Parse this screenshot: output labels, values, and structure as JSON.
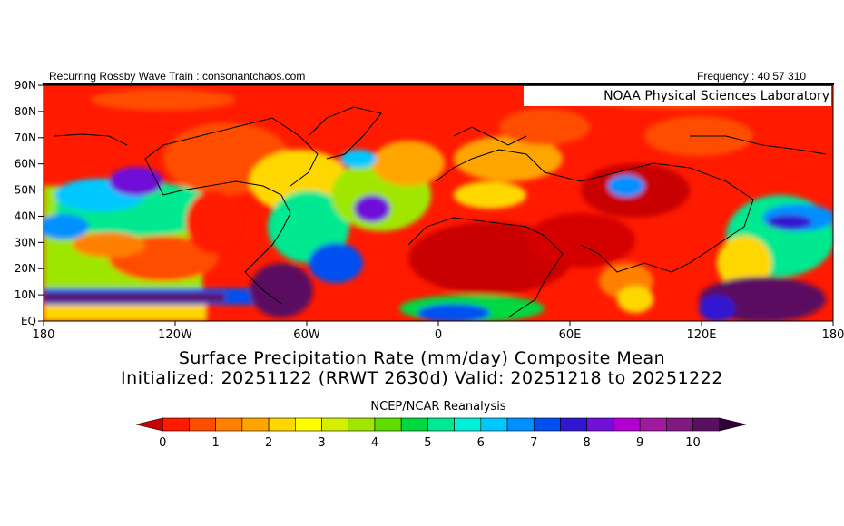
{
  "header": {
    "left_text": "Recurring Rossby Wave Train : consonantchaos.com",
    "right_text": "Frequency : 40 57 310"
  },
  "map": {
    "logo_text": "NOAA Physical Sciences Laboratory",
    "lat_labels": [
      "90N",
      "80N",
      "70N",
      "60N",
      "50N",
      "40N",
      "30N",
      "20N",
      "10N",
      "EQ"
    ],
    "lon_labels": [
      "180",
      "120W",
      "60W",
      "0",
      "60E",
      "120E",
      "180"
    ]
  },
  "titles": {
    "line1": "Surface Precipitation Rate (mm/day) Composite Mean",
    "line2": "Initialized: 20251122 (RRWT 2630d) Valid: 20251218 to 20251222",
    "source": "NCEP/NCAR Reanalysis"
  },
  "colorbar": {
    "labels": [
      "0",
      "1",
      "2",
      "3",
      "4",
      "5",
      "6",
      "7",
      "8",
      "9",
      "10"
    ],
    "colors": [
      "#c80000",
      "#ff1a00",
      "#ff4d00",
      "#ff8000",
      "#ffa500",
      "#ffd700",
      "#ffff00",
      "#d4ee00",
      "#a0e600",
      "#5fdc00",
      "#00d840",
      "#00e890",
      "#00f0d8",
      "#00c8ff",
      "#0090ff",
      "#0050f0",
      "#3018d0",
      "#7010d8",
      "#b000d0",
      "#a01aa0",
      "#801a80",
      "#5a1060",
      "#300038"
    ]
  },
  "chart_data": {
    "type": "heatmap",
    "title": "Surface Precipitation Rate (mm/day) Composite Mean",
    "subtitle": "Initialized: 20251122 (RRWT 2630d) Valid: 20251218 to 20251222",
    "units": "mm/day",
    "xlim": [
      -180,
      180
    ],
    "ylim": [
      0,
      90
    ],
    "colorscale_range": [
      0,
      10
    ]
  }
}
